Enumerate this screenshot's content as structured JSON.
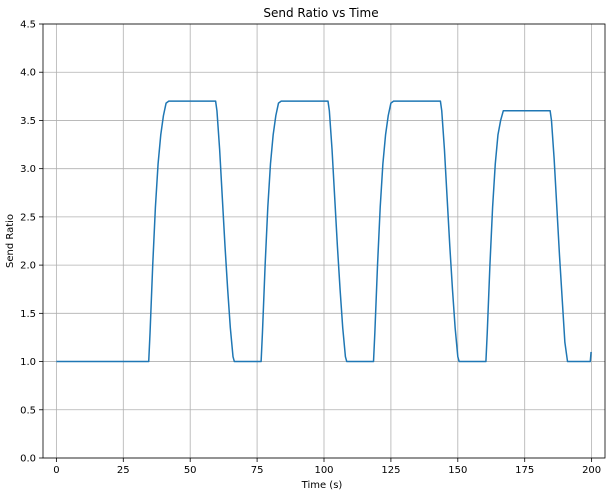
{
  "chart_data": {
    "type": "line",
    "title": "Send Ratio vs Time",
    "xlabel": "Time (s)",
    "ylabel": "Send Ratio",
    "xlim": [
      -5,
      205
    ],
    "ylim": [
      0.0,
      4.5
    ],
    "grid": true,
    "x_ticks": [
      0,
      25,
      50,
      75,
      100,
      125,
      150,
      175,
      200
    ],
    "x_tick_labels": [
      "0",
      "25",
      "50",
      "75",
      "100",
      "125",
      "150",
      "175",
      "200"
    ],
    "y_ticks": [
      0.0,
      0.5,
      1.0,
      1.5,
      2.0,
      2.5,
      3.0,
      3.5,
      4.0,
      4.5
    ],
    "y_tick_labels": [
      "0.0",
      "0.5",
      "1.0",
      "1.5",
      "2.0",
      "2.5",
      "3.0",
      "3.5",
      "4.0",
      "4.5"
    ],
    "series": [
      {
        "color": "#1f77b4",
        "x": [
          0,
          34.5,
          35,
          36,
          37,
          38,
          39,
          40,
          41,
          42,
          59.5,
          60,
          61,
          62,
          63,
          64,
          65,
          66,
          66.5,
          76.5,
          77,
          78,
          79,
          80,
          81,
          82,
          83,
          84,
          101.5,
          102,
          103,
          104,
          105,
          106,
          107,
          108,
          108.5,
          118.5,
          119,
          120,
          121,
          122,
          123,
          124,
          125,
          126,
          143.5,
          144,
          145,
          146,
          147,
          148,
          149,
          150,
          150.5,
          160.5,
          161,
          162,
          163,
          164,
          165,
          166,
          167,
          167.5,
          184.5,
          185,
          186,
          187,
          188,
          189,
          190,
          191,
          191.5,
          199.5,
          199.8
        ],
        "y": [
          1.0,
          1.0,
          1.3,
          2.0,
          2.6,
          3.05,
          3.35,
          3.55,
          3.68,
          3.7,
          3.7,
          3.6,
          3.2,
          2.7,
          2.2,
          1.75,
          1.35,
          1.05,
          1.0,
          1.0,
          1.3,
          2.0,
          2.6,
          3.05,
          3.35,
          3.55,
          3.68,
          3.7,
          3.7,
          3.6,
          3.2,
          2.7,
          2.2,
          1.75,
          1.35,
          1.05,
          1.0,
          1.0,
          1.3,
          2.0,
          2.6,
          3.05,
          3.35,
          3.55,
          3.68,
          3.7,
          3.7,
          3.6,
          3.2,
          2.7,
          2.2,
          1.75,
          1.35,
          1.05,
          1.0,
          1.0,
          1.3,
          2.0,
          2.6,
          3.05,
          3.35,
          3.5,
          3.6,
          3.6,
          3.6,
          3.5,
          3.1,
          2.6,
          2.1,
          1.65,
          1.2,
          1.0,
          1.0,
          1.0,
          1.1
        ]
      }
    ]
  }
}
